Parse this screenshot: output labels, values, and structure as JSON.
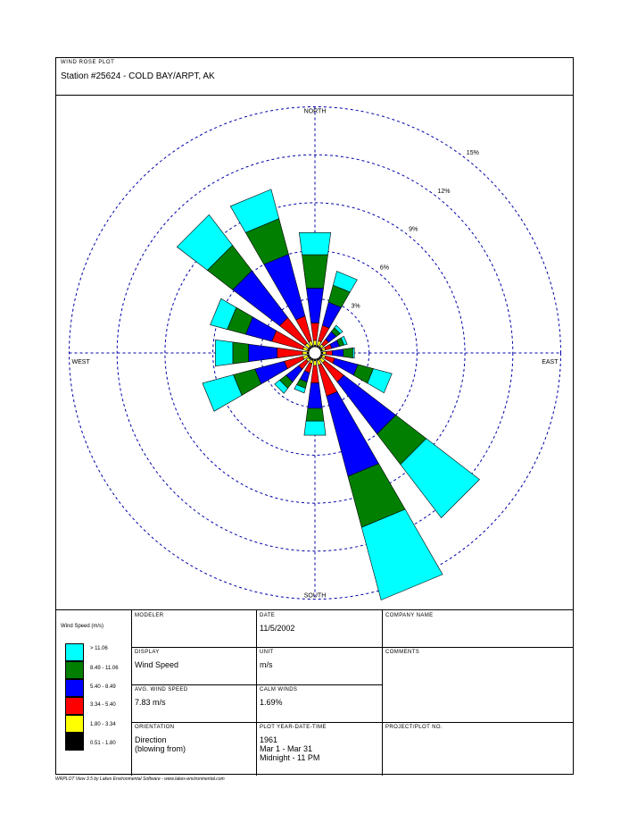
{
  "header": {
    "label": "WIND ROSE PLOT",
    "title": "Station #25624 - COLD BAY/ARPT, AK"
  },
  "chart_data": {
    "type": "wind-rose",
    "orientation_note": "Direction (blowing from)",
    "directions": [
      "N",
      "NNE",
      "NE",
      "ENE",
      "E",
      "ESE",
      "SE",
      "SSE",
      "S",
      "SSW",
      "SW",
      "WSW",
      "W",
      "WNW",
      "NW",
      "NNW"
    ],
    "speed_bins": [
      {
        "label": "0.51 - 1.80",
        "color": "#000000"
      },
      {
        "label": "1.80 - 3.34",
        "color": "#ffff00"
      },
      {
        "label": "3.34 - 5.40",
        "color": "#ff0000"
      },
      {
        "label": "5.40 - 8.49",
        "color": "#0000ff"
      },
      {
        "label": "8.49 - 11.06",
        "color": "#007f00"
      },
      {
        "label": "> 11.06",
        "color": "#00ffff"
      }
    ],
    "values_percent": {
      "N": [
        0.1,
        0.3,
        1.1,
        2.2,
        2.1,
        1.4
      ],
      "NNE": [
        0.1,
        0.3,
        1.0,
        1.5,
        1.1,
        0.9
      ],
      "NE": [
        0.1,
        0.2,
        0.4,
        0.6,
        0.3,
        0.2
      ],
      "ENE": [
        0.1,
        0.2,
        0.4,
        0.5,
        0.3,
        0.2
      ],
      "E": [
        0.1,
        0.2,
        0.4,
        0.7,
        0.6,
        0.1
      ],
      "ESE": [
        0.1,
        0.2,
        0.6,
        1.5,
        1.0,
        1.2
      ],
      "SE": [
        0.1,
        0.3,
        1.5,
        4.1,
        2.4,
        4.2
      ],
      "SSE": [
        0.1,
        0.3,
        2.0,
        5.2,
        3.3,
        4.7
      ],
      "S": [
        0.1,
        0.3,
        1.1,
        1.6,
        0.8,
        0.9
      ],
      "SSW": [
        0.1,
        0.2,
        0.6,
        0.6,
        0.4,
        0.3
      ],
      "SW": [
        0.1,
        0.2,
        0.6,
        1.0,
        0.5,
        0.4
      ],
      "WSW": [
        0.1,
        0.3,
        1.2,
        1.9,
        1.4,
        2.0
      ],
      "W": [
        0.1,
        0.3,
        1.6,
        1.8,
        1.0,
        1.1
      ],
      "WNW": [
        0.1,
        0.3,
        2.0,
        1.7,
        1.2,
        1.1
      ],
      "NW": [
        0.1,
        0.3,
        2.0,
        3.7,
        2.0,
        2.4
      ],
      "NNW": [
        0.1,
        0.3,
        1.6,
        4.0,
        2.3,
        1.9
      ]
    },
    "rings_percent": [
      3,
      6,
      9,
      12,
      15
    ],
    "ring_labels": [
      "3%",
      "6%",
      "9%",
      "12%",
      "15%"
    ],
    "compass_labels": {
      "north": "NORTH",
      "south": "SOUTH",
      "east": "EAST",
      "west": "WEST"
    },
    "legend_title": "Wind Speed (m/s)"
  },
  "info": {
    "modeler_label": "MODELER",
    "modeler_value": "",
    "date_label": "DATE",
    "date_value": "11/5/2002",
    "company_label": "COMPANY NAME",
    "company_value": "",
    "display_label": "DISPLAY",
    "display_value": "Wind Speed",
    "unit_label": "UNIT",
    "unit_value": "m/s",
    "comments_label": "COMMENTS",
    "avg_label": "AVG. WIND SPEED",
    "avg_value": "7.83 m/s",
    "calm_label": "CALM WINDS",
    "calm_value": "1.69%",
    "orientation_label": "ORIENTATION",
    "orientation_value_1": "Direction",
    "orientation_value_2": "(blowing from)",
    "plot_label": "PLOT YEAR-DATE-TIME",
    "plot_value_1": "1961",
    "plot_value_2": "Mar 1 - Mar 31",
    "plot_value_3": "Midnight - 11 PM",
    "project_label": "PROJECT/PLOT NO."
  },
  "footer": "WRPLOT View 3.5 by Lakes Environmental Software - www.lakes-environmental.com"
}
